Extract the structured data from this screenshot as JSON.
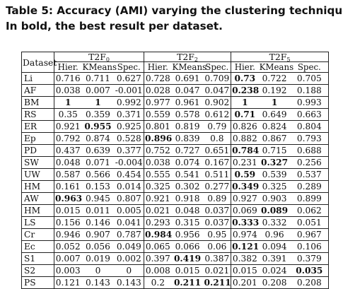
{
  "caption": {
    "line1": "Table 5: Accuracy (AMI) varying the clustering techniques",
    "line2": "In bold, the best result per dataset."
  },
  "header": {
    "dataset_label": "Dataset",
    "groups": [
      {
        "base": "T2F",
        "sub": "0"
      },
      {
        "base": "T2F",
        "sub": "2"
      },
      {
        "base": "T2F",
        "sub": "5"
      }
    ],
    "methods": [
      "Hier.",
      "KMeans",
      "Spec."
    ]
  },
  "rows": [
    {
      "name": "Li",
      "v": [
        "0.716",
        "0.711",
        "0.627",
        "0.728",
        "0.691",
        "0.709",
        "0.73",
        "0.722",
        "0.705"
      ],
      "bold": [
        6
      ]
    },
    {
      "name": "AF",
      "v": [
        "0.038",
        "0.007",
        "-0.001",
        "0.028",
        "0.047",
        "0.047",
        "0.238",
        "0.192",
        "0.188"
      ],
      "bold": [
        6
      ]
    },
    {
      "name": "BM",
      "v": [
        "1",
        "1",
        "0.992",
        "0.977",
        "0.961",
        "0.902",
        "1",
        "1",
        "0.993"
      ],
      "bold": [
        0,
        1,
        6,
        7
      ]
    },
    {
      "name": "RS",
      "v": [
        "0.35",
        "0.359",
        "0.371",
        "0.559",
        "0.578",
        "0.612",
        "0.71",
        "0.649",
        "0.663"
      ],
      "bold": [
        6
      ]
    },
    {
      "name": "ER",
      "v": [
        "0.921",
        "0.955",
        "0.925",
        "0.801",
        "0.819",
        "0.79",
        "0.826",
        "0.824",
        "0.804"
      ],
      "bold": [
        1
      ]
    },
    {
      "name": "Ep",
      "v": [
        "0.792",
        "0.874",
        "0.528",
        "0.896",
        "0.839",
        "0.8",
        "0.882",
        "0.867",
        "0.793"
      ],
      "bold": [
        3
      ]
    },
    {
      "name": "PD",
      "v": [
        "0.437",
        "0.639",
        "0.377",
        "0.752",
        "0.727",
        "0.651",
        "0.784",
        "0.715",
        "0.688"
      ],
      "bold": [
        6
      ]
    },
    {
      "name": "SW",
      "v": [
        "0.048",
        "0.071",
        "-0.004",
        "0.038",
        "0.074",
        "0.167",
        "0.231",
        "0.327",
        "0.256"
      ],
      "bold": [
        7
      ]
    },
    {
      "name": "UW",
      "v": [
        "0.587",
        "0.566",
        "0.454",
        "0.555",
        "0.541",
        "0.511",
        "0.59",
        "0.539",
        "0.537"
      ],
      "bold": [
        6
      ]
    },
    {
      "name": "HM",
      "v": [
        "0.161",
        "0.153",
        "0.014",
        "0.325",
        "0.302",
        "0.277",
        "0.349",
        "0.325",
        "0.289"
      ],
      "bold": [
        6
      ]
    },
    {
      "name": "AW",
      "v": [
        "0.963",
        "0.945",
        "0.807",
        "0.921",
        "0.918",
        "0.89",
        "0.927",
        "0.903",
        "0.899"
      ],
      "bold": [
        0
      ]
    },
    {
      "name": "HM",
      "v": [
        "0.015",
        "0.011",
        "0.005",
        "0.021",
        "0.048",
        "0.037",
        "0.069",
        "0.089",
        "0.062"
      ],
      "bold": [
        7
      ]
    },
    {
      "name": "LS",
      "v": [
        "0.156",
        "0.146",
        "0.041",
        "0.293",
        "0.315",
        "0.037",
        "0.333",
        "0.332",
        "0.051"
      ],
      "bold": [
        6
      ]
    },
    {
      "name": "Cr",
      "v": [
        "0.946",
        "0.907",
        "0.787",
        "0.984",
        "0.956",
        "0.95",
        "0.974",
        "0.96",
        "0.967"
      ],
      "bold": [
        3
      ]
    },
    {
      "name": "Ec",
      "v": [
        "0.052",
        "0.056",
        "0.049",
        "0.065",
        "0.066",
        "0.06",
        "0.121",
        "0.094",
        "0.106"
      ],
      "bold": [
        6
      ]
    },
    {
      "name": "S1",
      "v": [
        "0.007",
        "0.019",
        "0.002",
        "0.397",
        "0.419",
        "0.387",
        "0.382",
        "0.391",
        "0.379"
      ],
      "bold": [
        4
      ]
    },
    {
      "name": "S2",
      "v": [
        "0.003",
        "0",
        "0",
        "0.008",
        "0.015",
        "0.021",
        "0.015",
        "0.024",
        "0.035"
      ],
      "bold": [
        8
      ]
    },
    {
      "name": "PS",
      "v": [
        "0.121",
        "0.143",
        "0.143",
        "0.2",
        "0.211",
        "0.211",
        "0.201",
        "0.208",
        "0.208"
      ],
      "bold": [
        4,
        5
      ]
    }
  ]
}
